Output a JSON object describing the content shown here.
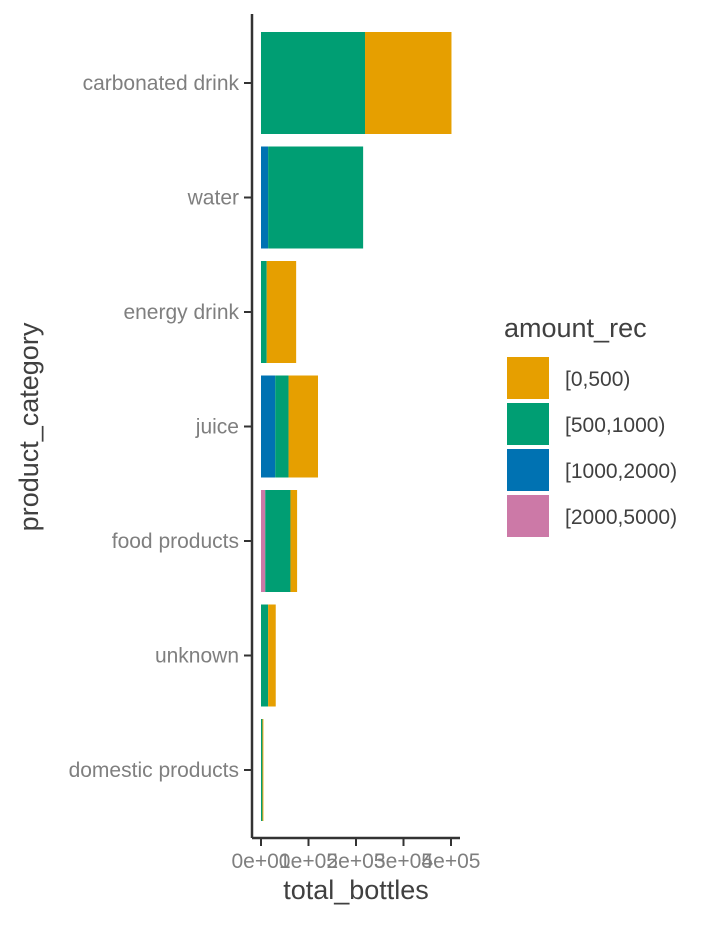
{
  "chart_data": {
    "type": "bar",
    "orientation": "horizontal",
    "stacked": true,
    "xlabel": "total_bottles",
    "ylabel": "product_category",
    "xlim": [
      0,
      420000
    ],
    "x_ticks": [
      0,
      100000,
      200000,
      300000,
      400000
    ],
    "x_tick_labels": [
      "0e+00",
      "1e+05",
      "2e+05",
      "3e+05",
      "4e+05"
    ],
    "categories": [
      "carbonated drink",
      "water",
      "energy drink",
      "juice",
      "food products",
      "unknown",
      "domestic products"
    ],
    "grid": false,
    "legend": {
      "title": "amount_rec",
      "position": "right",
      "entries": [
        {
          "label": "[0,500)",
          "color": "#E69F00"
        },
        {
          "label": "[500,1000)",
          "color": "#009E73"
        },
        {
          "label": "[1000,2000)",
          "color": "#0072B2"
        },
        {
          "label": "[2000,5000)",
          "color": "#CC79A7"
        }
      ]
    },
    "stack_order": [
      "[2000,5000)",
      "[1000,2000)",
      "[500,1000)",
      "[0,500)"
    ],
    "series": [
      {
        "name": "[0,500)",
        "color": "#E69F00",
        "values": [
          182000,
          0,
          62000,
          62000,
          14000,
          16000,
          2000
        ]
      },
      {
        "name": "[500,1000)",
        "color": "#009E73",
        "values": [
          219000,
          200000,
          12000,
          28000,
          53000,
          15000,
          3000
        ]
      },
      {
        "name": "[1000,2000)",
        "color": "#0072B2",
        "values": [
          0,
          15000,
          0,
          30000,
          0,
          0,
          0
        ]
      },
      {
        "name": "[2000,5000)",
        "color": "#CC79A7",
        "values": [
          0,
          0,
          0,
          0,
          9000,
          0,
          0
        ]
      }
    ]
  }
}
